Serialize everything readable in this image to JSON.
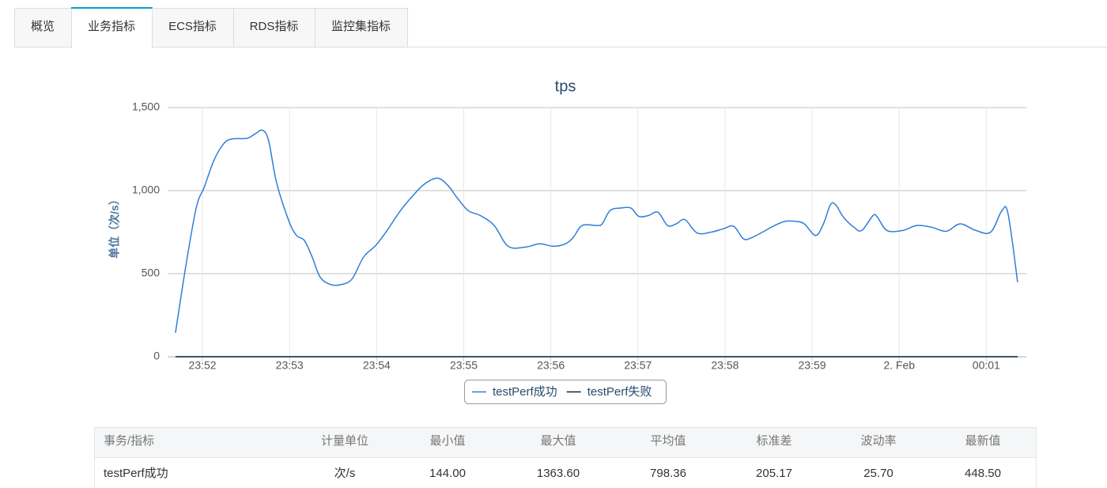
{
  "tabs": [
    "概览",
    "业务指标",
    "ECS指标",
    "RDS指标",
    "监控集指标"
  ],
  "active_tab": 1,
  "chart_data": {
    "type": "line",
    "title": "tps",
    "y_label": "单位（次/s）",
    "x": [
      1431.69,
      1431.81,
      1431.93,
      1432.02,
      1432.13,
      1432.24,
      1432.33,
      1432.51,
      1432.6,
      1432.69,
      1432.76,
      1432.85,
      1432.99,
      1433.08,
      1433.17,
      1433.26,
      1433.35,
      1433.47,
      1433.6,
      1433.72,
      1433.85,
      1433.99,
      1434.12,
      1434.26,
      1434.4,
      1434.55,
      1434.7,
      1434.82,
      1434.92,
      1435.05,
      1435.19,
      1435.35,
      1435.51,
      1435.71,
      1435.87,
      1436.03,
      1436.17,
      1436.26,
      1436.36,
      1436.53,
      1436.59,
      1436.68,
      1436.8,
      1436.92,
      1437.01,
      1437.12,
      1437.23,
      1437.34,
      1437.44,
      1437.54,
      1437.68,
      1437.84,
      1437.98,
      1438.1,
      1438.21,
      1438.3,
      1438.43,
      1438.57,
      1438.69,
      1438.81,
      1438.91,
      1439.04,
      1439.13,
      1439.21,
      1439.27,
      1439.36,
      1439.48,
      1439.57,
      1439.7,
      1439.75,
      1439.86,
      1440.04,
      1440.2,
      1440.37,
      1440.54,
      1440.7,
      1440.88,
      1441.05,
      1441.18,
      1441.25,
      1441.36
    ],
    "series": [
      {
        "name": "testPerf成功",
        "color": "#2f7ed8",
        "values": [
          144,
          550,
          900,
          1020,
          1180,
          1280,
          1310,
          1315,
          1340,
          1363.6,
          1300,
          1050,
          820,
          730,
          700,
          600,
          480,
          435,
          435,
          470,
          600,
          670,
          760,
          870,
          960,
          1040,
          1075,
          1030,
          960,
          880,
          850,
          790,
          665,
          660,
          680,
          665,
          680,
          720,
          790,
          790,
          800,
          880,
          895,
          895,
          845,
          850,
          870,
          790,
          800,
          825,
          745,
          750,
          770,
          785,
          710,
          715,
          750,
          790,
          815,
          815,
          800,
          730,
          800,
          915,
          915,
          840,
          780,
          760,
          850,
          840,
          760,
          760,
          790,
          780,
          755,
          800,
          760,
          750,
          880,
          860,
          448.5
        ]
      },
      {
        "name": "testPerf失败",
        "color": "#0d233a",
        "values": [
          0,
          0,
          0,
          0,
          0,
          0,
          0,
          0,
          0,
          0,
          0,
          0,
          0,
          0,
          0,
          0,
          0,
          0,
          0,
          0,
          0,
          0,
          0,
          0,
          0,
          0,
          0,
          0,
          0,
          0,
          0,
          0,
          0,
          0,
          0,
          0,
          0,
          0,
          0,
          0,
          0,
          0,
          0,
          0,
          0,
          0,
          0,
          0,
          0,
          0,
          0,
          0,
          0,
          0,
          0,
          0,
          0,
          0,
          0,
          0,
          0,
          0,
          0,
          0,
          0,
          0,
          0,
          0,
          0,
          0,
          0,
          0,
          0,
          0,
          0,
          0,
          0,
          0,
          0,
          0,
          0
        ]
      }
    ],
    "xlim": [
      1431.6,
      1441.46
    ],
    "xticks": [
      {
        "value": 1432,
        "label": "23:52"
      },
      {
        "value": 1433,
        "label": "23:53"
      },
      {
        "value": 1434,
        "label": "23:54"
      },
      {
        "value": 1435,
        "label": "23:55"
      },
      {
        "value": 1436,
        "label": "23:56"
      },
      {
        "value": 1437,
        "label": "23:57"
      },
      {
        "value": 1438,
        "label": "23:58"
      },
      {
        "value": 1439,
        "label": "23:59"
      },
      {
        "value": 1440,
        "label": "2. Feb"
      },
      {
        "value": 1441,
        "label": "00:01"
      }
    ],
    "ylim": [
      0,
      1500
    ],
    "yticks": [
      0,
      500,
      {
        "value": 1000,
        "label": "1,000"
      },
      {
        "value": 1500,
        "label": "1,500"
      }
    ],
    "grid": true,
    "legend": "bottom"
  },
  "table": {
    "header": [
      "事务/指标",
      "计量单位",
      "最小值",
      "最大值",
      "平均值",
      "标准差",
      "波动率",
      "最新值"
    ],
    "rows": [
      [
        "testPerf成功",
        "次/s",
        "144.00",
        "1363.60",
        "798.36",
        "205.17",
        "25.70",
        "448.50"
      ]
    ]
  }
}
